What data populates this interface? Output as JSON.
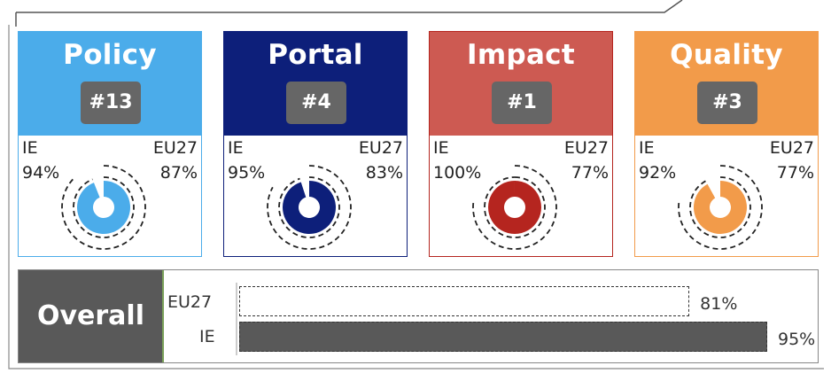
{
  "chart_data": [
    {
      "type": "donut",
      "title": "Policy",
      "rank": "#13",
      "ie_label": "IE",
      "eu_label": "EU27",
      "ie_value": 94,
      "eu_value": 87,
      "ie_text": "94%",
      "eu_text": "87%",
      "color": "#4bacea"
    },
    {
      "type": "donut",
      "title": "Portal",
      "rank": "#4",
      "ie_label": "IE",
      "eu_label": "EU27",
      "ie_value": 95,
      "eu_value": 83,
      "ie_text": "95%",
      "eu_text": "83%",
      "color": "#0d1f7a"
    },
    {
      "type": "donut",
      "title": "Impact",
      "rank": "#1",
      "ie_label": "IE",
      "eu_label": "EU27",
      "ie_value": 100,
      "eu_value": 77,
      "ie_text": "100%",
      "eu_text": "77%",
      "color": "#b5251f",
      "head_color": "#cd5a52"
    },
    {
      "type": "donut",
      "title": "Quality",
      "rank": "#3",
      "ie_label": "IE",
      "eu_label": "EU27",
      "ie_value": 92,
      "eu_value": 77,
      "ie_text": "92%",
      "eu_text": "77%",
      "color": "#f29b4a"
    },
    {
      "type": "bar",
      "title": "Overall",
      "categories": [
        "EU27",
        "IE"
      ],
      "values": [
        81,
        95
      ],
      "value_texts": [
        "81%",
        "95%"
      ],
      "xlim": [
        0,
        100
      ],
      "eu_style": "dashed-outline",
      "ie_color": "#595959"
    }
  ]
}
